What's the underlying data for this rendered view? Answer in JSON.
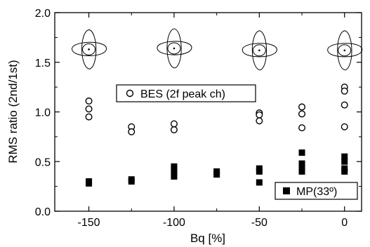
{
  "chart_data": {
    "type": "scatter",
    "xlabel": "Bq [%]",
    "ylabel": "RMS ratio (2nd/1st)",
    "xlim": [
      -170,
      10
    ],
    "ylim": [
      0.0,
      2.0
    ],
    "x_ticks": [
      -150,
      -100,
      -50,
      0
    ],
    "x_tick_labels": [
      "-150",
      "-100",
      "-50",
      "0"
    ],
    "y_ticks": [
      0.0,
      0.5,
      1.0,
      1.5,
      2.0
    ],
    "y_tick_labels": [
      "0.0",
      "0.5",
      "1.0",
      "1.5",
      "2.0"
    ],
    "grid": false,
    "series": [
      {
        "name": "BES (2f peak ch)",
        "marker": "open-circle",
        "points": [
          {
            "x": -150,
            "y": 1.11
          },
          {
            "x": -150,
            "y": 1.03
          },
          {
            "x": -150,
            "y": 0.95
          },
          {
            "x": -125,
            "y": 0.85
          },
          {
            "x": -125,
            "y": 0.8
          },
          {
            "x": -100,
            "y": 0.88
          },
          {
            "x": -100,
            "y": 0.82
          },
          {
            "x": -50,
            "y": 0.99
          },
          {
            "x": -50,
            "y": 0.97
          },
          {
            "x": -50,
            "y": 0.91
          },
          {
            "x": -25,
            "y": 1.05
          },
          {
            "x": -25,
            "y": 0.98
          },
          {
            "x": -25,
            "y": 0.84
          },
          {
            "x": 0,
            "y": 1.25
          },
          {
            "x": 0,
            "y": 1.21
          },
          {
            "x": 0,
            "y": 1.07
          },
          {
            "x": 0,
            "y": 0.85
          }
        ]
      },
      {
        "name": "MP(33º)",
        "marker": "filled-square",
        "points": [
          {
            "x": -150,
            "y": 0.3
          },
          {
            "x": -150,
            "y": 0.28
          },
          {
            "x": -125,
            "y": 0.32
          },
          {
            "x": -125,
            "y": 0.3
          },
          {
            "x": -100,
            "y": 0.45
          },
          {
            "x": -100,
            "y": 0.42
          },
          {
            "x": -100,
            "y": 0.38
          },
          {
            "x": -100,
            "y": 0.35
          },
          {
            "x": -75,
            "y": 0.4
          },
          {
            "x": -75,
            "y": 0.37
          },
          {
            "x": -50,
            "y": 0.43
          },
          {
            "x": -50,
            "y": 0.4
          },
          {
            "x": -50,
            "y": 0.29
          },
          {
            "x": -25,
            "y": 0.59
          },
          {
            "x": -25,
            "y": 0.48
          },
          {
            "x": -25,
            "y": 0.44
          },
          {
            "x": -25,
            "y": 0.4
          },
          {
            "x": 0,
            "y": 0.55
          },
          {
            "x": 0,
            "y": 0.5
          },
          {
            "x": 0,
            "y": 0.43
          },
          {
            "x": 0,
            "y": 0.4
          }
        ]
      }
    ],
    "insets": [
      {
        "x": -150,
        "y": 1.63
      },
      {
        "x": -100,
        "y": 1.64
      },
      {
        "x": -50,
        "y": 1.62
      },
      {
        "x": 0,
        "y": 1.62
      }
    ]
  }
}
